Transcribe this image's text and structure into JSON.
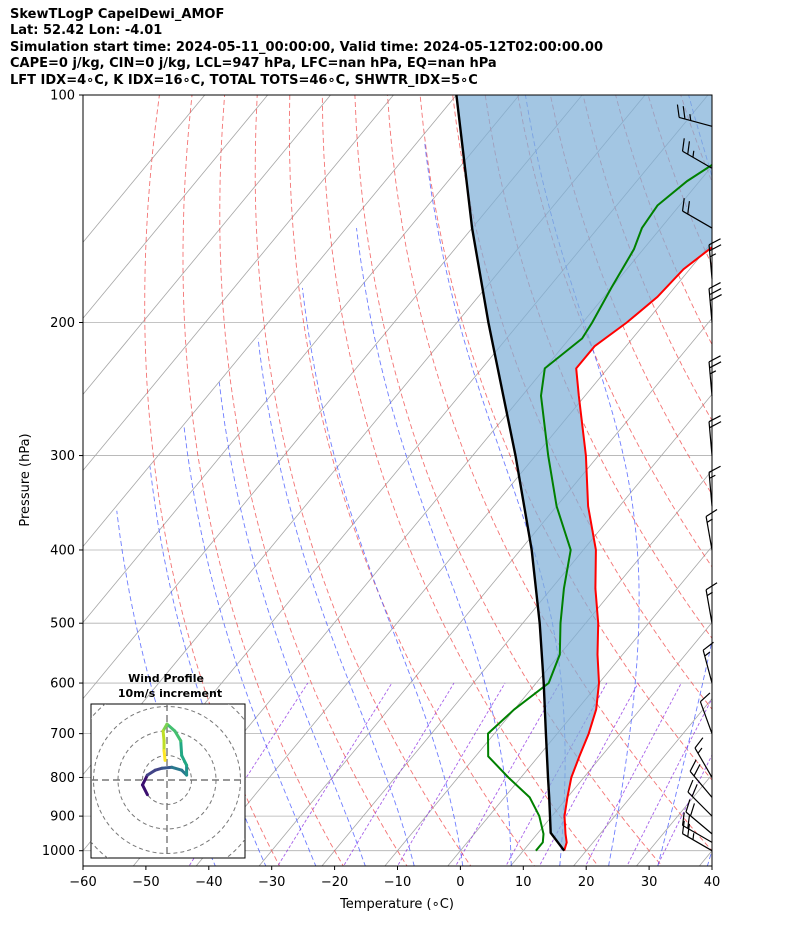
{
  "header": {
    "line1": "SkewTLogP CapelDewi_AMOF",
    "line2": "Lat: 52.42   Lon: -4.01",
    "line3": "Simulation start time: 2024-05-11_00:00:00, Valid time: 2024-05-12T02:00:00.00",
    "line4": "CAPE=0 j/kg, CIN=0 j/kg, LCL=947 hPa, LFC=nan hPa, EQ=nan hPa",
    "line5": "LFT IDX=4∘C, K IDX=16∘C, TOTAL TOTS=46∘C, SHWTR_IDX=5∘C"
  },
  "chart_data": {
    "type": "line",
    "xlabel": "Temperature (∘C)",
    "ylabel": "Pressure (hPa)",
    "xlim": [
      -60,
      40
    ],
    "ylim": [
      1050,
      100
    ],
    "yscale": "log",
    "skew": true,
    "grid": true,
    "x_ticks": [
      -60,
      -50,
      -40,
      -30,
      -20,
      -10,
      0,
      10,
      20,
      30,
      40
    ],
    "y_ticks": [
      100,
      200,
      300,
      400,
      500,
      600,
      700,
      800,
      900,
      1000
    ],
    "series": [
      {
        "role": "temperature",
        "color": "#ff0000",
        "points": [
          [
            1000,
            16.5
          ],
          [
            975,
            15.8
          ],
          [
            950,
            14.5
          ],
          [
            900,
            12.0
          ],
          [
            850,
            10.0
          ],
          [
            800,
            8.0
          ],
          [
            750,
            6.5
          ],
          [
            700,
            5.0
          ],
          [
            650,
            3.0
          ],
          [
            600,
            0.0
          ],
          [
            550,
            -4.0
          ],
          [
            500,
            -8.0
          ],
          [
            450,
            -13.0
          ],
          [
            400,
            -18.0
          ],
          [
            350,
            -25.0
          ],
          [
            300,
            -32.0
          ],
          [
            250,
            -41.0
          ],
          [
            230,
            -45.0
          ],
          [
            215,
            -45.0
          ],
          [
            200,
            -43.0
          ],
          [
            185,
            -41.5
          ],
          [
            170,
            -41.0
          ],
          [
            160,
            -39.5
          ],
          [
            145,
            -37.0
          ],
          [
            130,
            -36.0
          ],
          [
            120,
            -35.5
          ],
          [
            110,
            -35.5
          ],
          [
            100,
            -36.0
          ]
        ]
      },
      {
        "role": "dewpoint",
        "color": "#008000",
        "points": [
          [
            1000,
            12.0
          ],
          [
            975,
            12.0
          ],
          [
            950,
            11.0
          ],
          [
            900,
            8.0
          ],
          [
            850,
            4.0
          ],
          [
            800,
            -2.0
          ],
          [
            750,
            -8.0
          ],
          [
            700,
            -11.0
          ],
          [
            650,
            -10.0
          ],
          [
            600,
            -8.0
          ],
          [
            550,
            -10.0
          ],
          [
            500,
            -14.0
          ],
          [
            450,
            -18.0
          ],
          [
            400,
            -22.0
          ],
          [
            350,
            -30.0
          ],
          [
            300,
            -38.0
          ],
          [
            250,
            -47.0
          ],
          [
            230,
            -50.0
          ],
          [
            210,
            -48.0
          ],
          [
            200,
            -48.5
          ],
          [
            180,
            -50.0
          ],
          [
            160,
            -51.5
          ],
          [
            150,
            -53.0
          ],
          [
            140,
            -53.5
          ],
          [
            130,
            -52.0
          ],
          [
            120,
            -49.0
          ],
          [
            110,
            -44.0
          ],
          [
            100,
            -40.0
          ]
        ]
      },
      {
        "role": "parcel",
        "color": "#000000",
        "points": [
          [
            1000,
            16.5
          ],
          [
            947,
            12.0
          ],
          [
            900,
            9.7
          ],
          [
            850,
            7.1
          ],
          [
            800,
            4.3
          ],
          [
            700,
            -1.8
          ],
          [
            600,
            -8.8
          ],
          [
            500,
            -17.3
          ],
          [
            400,
            -28.2
          ],
          [
            300,
            -43.2
          ],
          [
            250,
            -53.0
          ],
          [
            200,
            -65.0
          ],
          [
            150,
            -80.0
          ],
          [
            100,
            -100.0
          ]
        ]
      }
    ],
    "wind_barbs": [
      {
        "p": 1000,
        "speed_kt": 25,
        "dir_deg": 300
      },
      {
        "p": 975,
        "speed_kt": 20,
        "dir_deg": 300
      },
      {
        "p": 950,
        "speed_kt": 20,
        "dir_deg": 310
      },
      {
        "p": 900,
        "speed_kt": 20,
        "dir_deg": 315
      },
      {
        "p": 850,
        "speed_kt": 20,
        "dir_deg": 320
      },
      {
        "p": 800,
        "speed_kt": 15,
        "dir_deg": 330
      },
      {
        "p": 700,
        "speed_kt": 10,
        "dir_deg": 340
      },
      {
        "p": 600,
        "speed_kt": 15,
        "dir_deg": 345
      },
      {
        "p": 500,
        "speed_kt": 15,
        "dir_deg": 350
      },
      {
        "p": 400,
        "speed_kt": 15,
        "dir_deg": 350
      },
      {
        "p": 350,
        "speed_kt": 15,
        "dir_deg": 355
      },
      {
        "p": 300,
        "speed_kt": 20,
        "dir_deg": 355
      },
      {
        "p": 250,
        "speed_kt": 25,
        "dir_deg": 355
      },
      {
        "p": 200,
        "speed_kt": 30,
        "dir_deg": 355
      },
      {
        "p": 175,
        "speed_kt": 25,
        "dir_deg": 355
      },
      {
        "p": 150,
        "speed_kt": 20,
        "dir_deg": 300
      },
      {
        "p": 125,
        "speed_kt": 25,
        "dir_deg": 300
      },
      {
        "p": 110,
        "speed_kt": 25,
        "dir_deg": 285
      }
    ],
    "hodograph": {
      "title": "Wind Profile",
      "subtitle": "10m/s increment",
      "rings": 3,
      "points": [
        [
          -2.0,
          -1.5
        ],
        [
          -2.5,
          -0.5
        ],
        [
          -2.0,
          0.5
        ],
        [
          -1.2,
          1.0
        ],
        [
          -0.5,
          1.2
        ],
        [
          0.5,
          1.3
        ],
        [
          1.5,
          1.0
        ],
        [
          2.0,
          0.5
        ],
        [
          2.0,
          1.5
        ],
        [
          1.5,
          2.5
        ],
        [
          1.4,
          4.0
        ],
        [
          0.8,
          5.0
        ],
        [
          0.0,
          5.7
        ],
        [
          -0.4,
          5.0
        ],
        [
          -0.3,
          4.0
        ],
        [
          -0.3,
          3.0
        ],
        [
          -0.2,
          2.0
        ]
      ]
    }
  }
}
